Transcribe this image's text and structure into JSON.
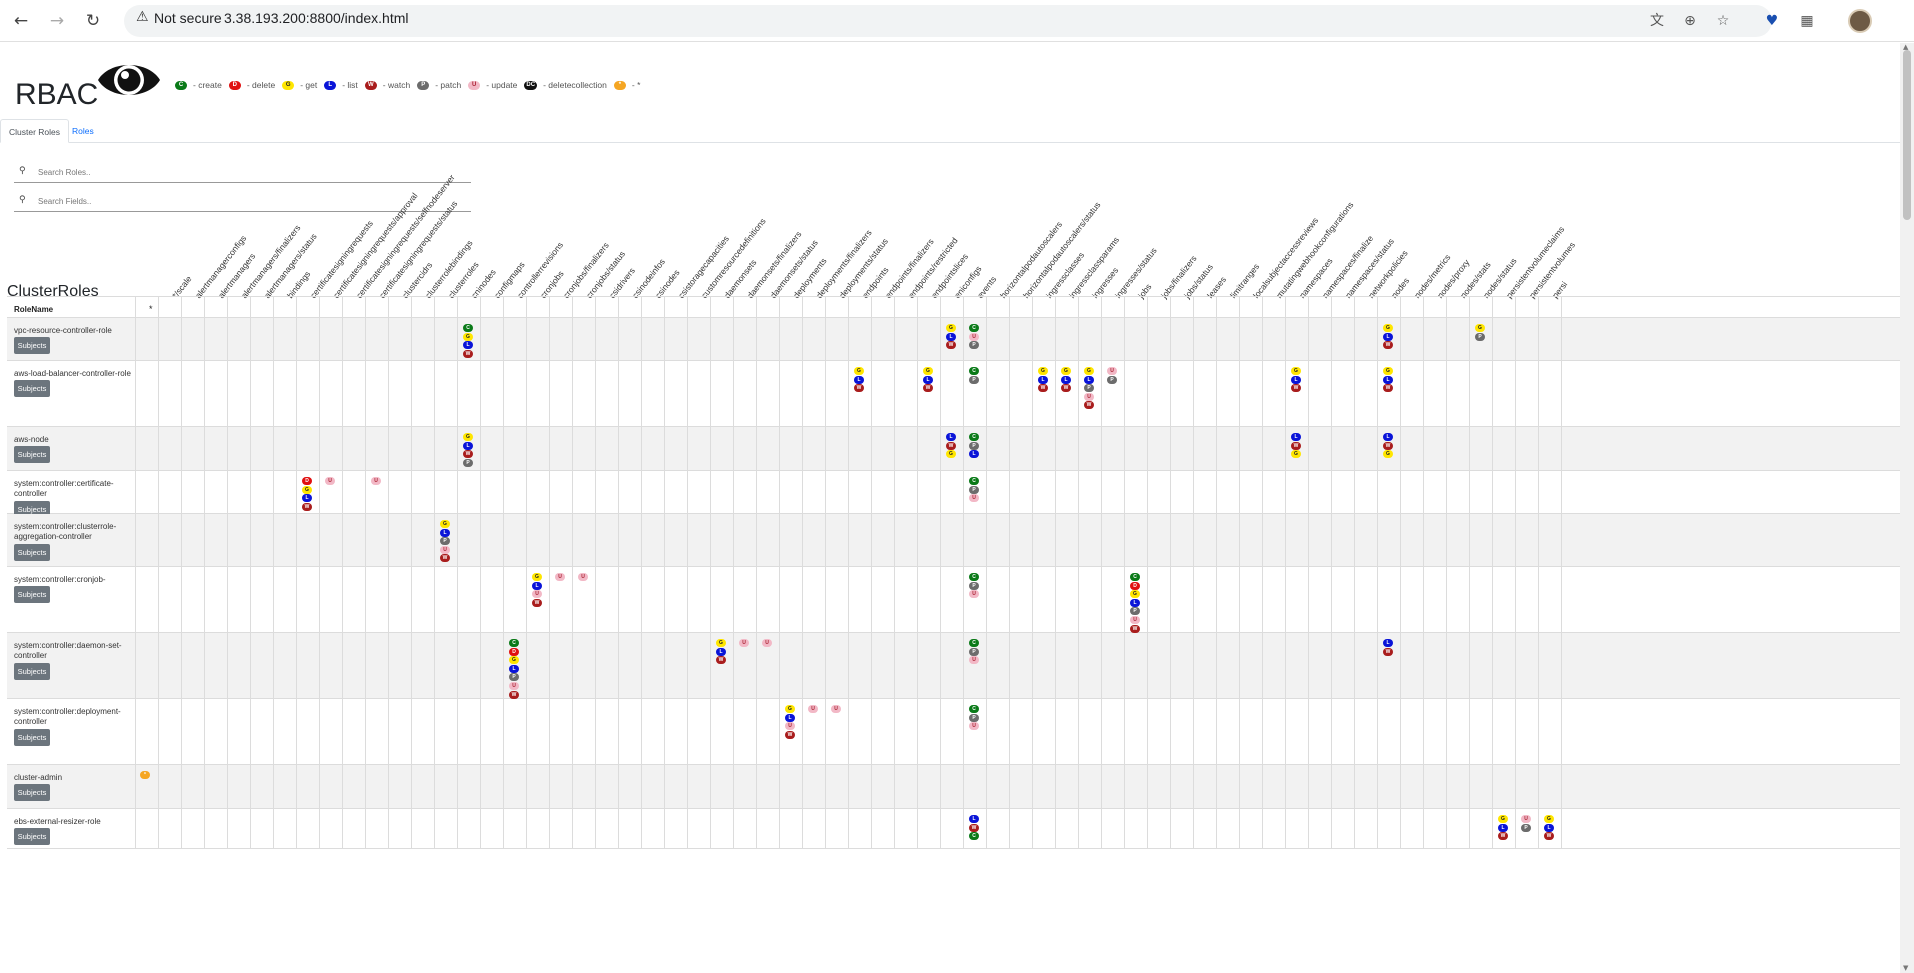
{
  "browser": {
    "security_label": "Not secure",
    "url": "3.38.193.200:8800/index.html"
  },
  "app": {
    "brand": "RBAC",
    "legend": [
      {
        "code": "C",
        "label": "- create"
      },
      {
        "code": "D",
        "label": "- delete"
      },
      {
        "code": "G",
        "label": "- get"
      },
      {
        "code": "L",
        "label": "- list"
      },
      {
        "code": "W",
        "label": "- watch"
      },
      {
        "code": "P",
        "label": "- patch"
      },
      {
        "code": "U",
        "label": "- update"
      },
      {
        "code": "DC",
        "label": "- deletecollection"
      },
      {
        "code": "*",
        "label": "- *"
      }
    ],
    "colors": {
      "create": "#0a7a18",
      "delete": "#e01010",
      "get": "#ffe600",
      "list": "#0a14d8",
      "watch": "#a91d1d",
      "patch": "#6c6c6c",
      "update": "#f2b8c6",
      "deletecollection": "#111111",
      "all": "#f5a623"
    }
  },
  "tabs": [
    "Cluster Roles",
    "Roles"
  ],
  "search": {
    "roles_placeholder": "Search Roles..",
    "fields_placeholder": "Search Fields.."
  },
  "section_title": "ClusterRoles",
  "table": {
    "rolename_header": "RoleName",
    "star_header": "*",
    "subjects_label": "Subjects",
    "columns": [
      "*/scale",
      "alertmanagerconfigs",
      "alertmanagers",
      "alertmanagers/finalizers",
      "alertmanagers/status",
      "bindings",
      "certificatesigningrequests",
      "certificatesigningrequests/approval",
      "certificatesigningrequests/selfnodeserver",
      "certificatesigningrequests/status",
      "clustercidrs",
      "clusterrolebindings",
      "clusterroles",
      "cninodes",
      "configmaps",
      "controllerrevisions",
      "cronjobs",
      "cronjobs/finalizers",
      "cronjobs/status",
      "csidrivers",
      "csinodeinfos",
      "csinodes",
      "csistoragecapacities",
      "customresourcedefinitions",
      "daemonsets",
      "daemonsets/finalizers",
      "daemonsets/status",
      "deployments",
      "deployments/finalizers",
      "deployments/status",
      "endpoints",
      "endpoints/finalizers",
      "endpoints/restricted",
      "endpointslices",
      "eniconfigs",
      "events",
      "horizontalpodautoscalers",
      "horizontalpodautoscalers/status",
      "ingressclasses",
      "ingressclassparams",
      "ingresses",
      "ingresses/status",
      "jobs",
      "jobs/finalizers",
      "jobs/status",
      "leases",
      "limitranges",
      "localsubjectaccessreviews",
      "mutatingwebhookconfigurations",
      "namespaces",
      "namespaces/finalize",
      "namespaces/status",
      "networkpolicies",
      "nodes",
      "nodes/metrics",
      "nodes/proxy",
      "nodes/stats",
      "nodes/status",
      "persistentvolumeclaims",
      "persistentvolumes",
      "persi"
    ],
    "rows": [
      {
        "name": "vpc-resource-controller-role",
        "cells": [
          {
            "col": 13,
            "p": [
              "C",
              "G",
              "L",
              "W"
            ]
          },
          {
            "col": 34,
            "p": [
              "G",
              "L",
              "W"
            ]
          },
          {
            "col": 35,
            "p": [
              "C",
              "U",
              "P"
            ]
          },
          {
            "col": 53,
            "p": [
              "G",
              "L",
              "W"
            ]
          },
          {
            "col": 57,
            "p": [
              "G",
              "P"
            ]
          }
        ]
      },
      {
        "name": "aws-load-balancer-controller-role",
        "cells": [
          {
            "col": 30,
            "p": [
              "G",
              "L",
              "W"
            ]
          },
          {
            "col": 33,
            "p": [
              "G",
              "L",
              "W"
            ]
          },
          {
            "col": 35,
            "p": [
              "C",
              "P"
            ]
          },
          {
            "col": 38,
            "p": [
              "G",
              "L",
              "W"
            ]
          },
          {
            "col": 39,
            "p": [
              "G",
              "L",
              "W"
            ]
          },
          {
            "col": 40,
            "p": [
              "G",
              "L",
              "P",
              "U",
              "W"
            ]
          },
          {
            "col": 41,
            "p": [
              "U",
              "P"
            ]
          },
          {
            "col": 49,
            "p": [
              "G",
              "L",
              "W"
            ]
          },
          {
            "col": 53,
            "p": [
              "G",
              "L",
              "W"
            ]
          }
        ]
      },
      {
        "name": "aws-node",
        "cells": [
          {
            "col": 13,
            "p": [
              "G",
              "L",
              "W",
              "P"
            ]
          },
          {
            "col": 34,
            "p": [
              "L",
              "W",
              "G"
            ]
          },
          {
            "col": 35,
            "p": [
              "C",
              "P",
              "L"
            ]
          },
          {
            "col": 49,
            "p": [
              "L",
              "W",
              "G"
            ]
          },
          {
            "col": 53,
            "p": [
              "L",
              "W",
              "G"
            ]
          }
        ]
      },
      {
        "name": "system:controller:certificate-controller",
        "cells": [
          {
            "col": 6,
            "p": [
              "D",
              "G",
              "L",
              "W"
            ]
          },
          {
            "col": 7,
            "p": [
              "U"
            ]
          },
          {
            "col": 9,
            "p": [
              "U"
            ]
          },
          {
            "col": 35,
            "p": [
              "C",
              "P",
              "U"
            ]
          }
        ]
      },
      {
        "name": "system:controller:clusterrole-aggregation-controller",
        "cells": [
          {
            "col": 12,
            "p": [
              "G",
              "L",
              "P",
              "U",
              "W"
            ]
          }
        ]
      },
      {
        "name": "system:controller:cronjob-controller",
        "cells": [
          {
            "col": 16,
            "p": [
              "G",
              "L",
              "U",
              "W"
            ]
          },
          {
            "col": 17,
            "p": [
              "U"
            ]
          },
          {
            "col": 18,
            "p": [
              "U"
            ]
          },
          {
            "col": 35,
            "p": [
              "C",
              "P",
              "U"
            ]
          },
          {
            "col": 42,
            "p": [
              "C",
              "D",
              "G",
              "L",
              "P",
              "U",
              "W"
            ]
          }
        ]
      },
      {
        "name": "system:controller:daemon-set-controller",
        "cells": [
          {
            "col": 15,
            "p": [
              "C",
              "D",
              "G",
              "L",
              "P",
              "U",
              "W"
            ]
          },
          {
            "col": 24,
            "p": [
              "G",
              "L",
              "W"
            ]
          },
          {
            "col": 25,
            "p": [
              "U"
            ]
          },
          {
            "col": 26,
            "p": [
              "U"
            ]
          },
          {
            "col": 35,
            "p": [
              "C",
              "P",
              "U"
            ]
          },
          {
            "col": 53,
            "p": [
              "L",
              "W"
            ]
          }
        ]
      },
      {
        "name": "system:controller:deployment-controller",
        "cells": [
          {
            "col": 27,
            "p": [
              "G",
              "L",
              "U",
              "W"
            ]
          },
          {
            "col": 28,
            "p": [
              "U"
            ]
          },
          {
            "col": 29,
            "p": [
              "U"
            ]
          },
          {
            "col": 35,
            "p": [
              "C",
              "P",
              "U"
            ]
          }
        ]
      },
      {
        "name": "cluster-admin",
        "star": true,
        "cells": []
      },
      {
        "name": "ebs-external-resizer-role",
        "cells": [
          {
            "col": 35,
            "p": [
              "L",
              "W",
              "C"
            ]
          },
          {
            "col": 58,
            "p": [
              "G",
              "L",
              "W"
            ]
          },
          {
            "col": 59,
            "p": [
              "U",
              "P"
            ]
          },
          {
            "col": 60,
            "p": [
              "G",
              "L",
              "W"
            ]
          }
        ]
      }
    ]
  }
}
